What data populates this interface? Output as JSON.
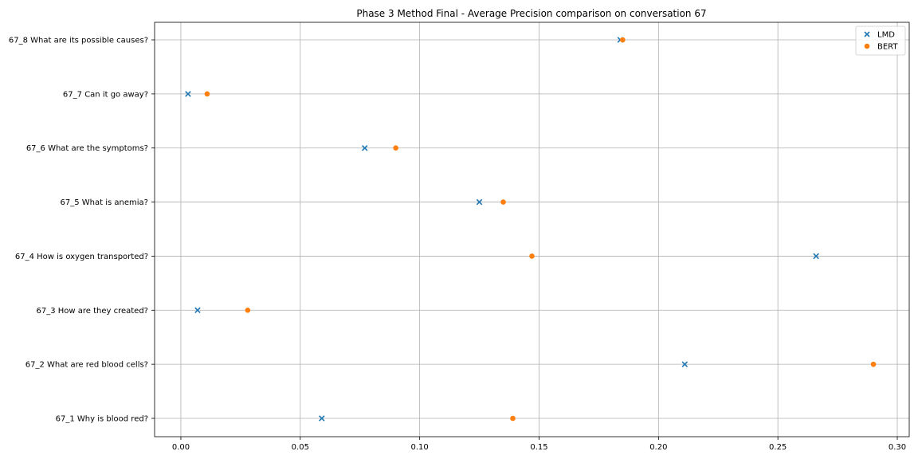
{
  "chart_data": {
    "type": "scatter",
    "title": "Phase 3 Method Final - Average Precision comparison on conversation 67",
    "xlabel": "",
    "ylabel": "",
    "xlim": [
      -0.011,
      0.305
    ],
    "xticks": [
      0.0,
      0.05,
      0.1,
      0.15,
      0.2,
      0.25,
      0.3
    ],
    "xtick_labels": [
      "0.00",
      "0.05",
      "0.10",
      "0.15",
      "0.20",
      "0.25",
      "0.30"
    ],
    "categories": [
      "67_1 Why is blood red?",
      "67_2 What are red blood cells?",
      "67_3 How are they created?",
      "67_4 How is oxygen transported?",
      "67_5 What is anemia?",
      "67_6 What are the symptoms?",
      "67_7 Can it go away?",
      "67_8 What are its possible causes?"
    ],
    "grid": true,
    "legend_position": "top-right",
    "series": [
      {
        "name": "LMD",
        "marker": "x",
        "color": "#1f77b4",
        "values": [
          0.059,
          0.211,
          0.007,
          0.266,
          0.125,
          0.077,
          0.003,
          0.184
        ]
      },
      {
        "name": "BERT",
        "marker": "o",
        "color": "#ff7f0e",
        "values": [
          0.139,
          0.29,
          0.028,
          0.147,
          0.135,
          0.09,
          0.011,
          0.185
        ]
      }
    ]
  }
}
